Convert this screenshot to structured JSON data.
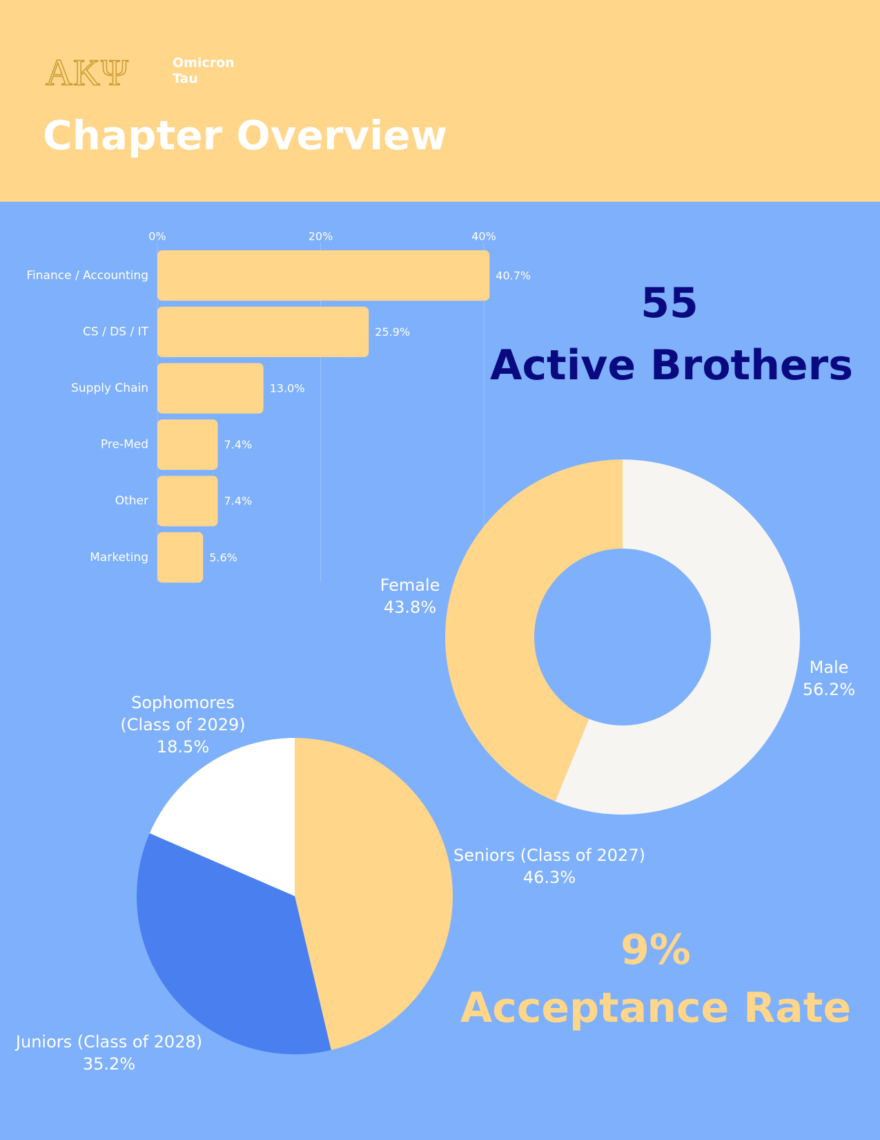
{
  "header": {
    "logo": "AKΨ",
    "chapter_lines": [
      "Omicron",
      "Tau"
    ],
    "title": "Chapter Overview"
  },
  "stats": [
    {
      "value": "55",
      "label": "Active Brothers"
    },
    {
      "value": "9%",
      "label": "Acceptance Rate"
    }
  ],
  "chart_data": [
    {
      "type": "hbar",
      "categories": [
        "Finance / Accounting",
        "CS / DS / IT",
        "Supply Chain",
        "Pre-Med",
        "Other",
        "Marketing"
      ],
      "values": [
        40.7,
        25.9,
        13.0,
        7.4,
        7.4,
        5.6
      ],
      "value_labels": [
        "40.7%",
        "25.9%",
        "13.0%",
        "7.4%",
        "7.4%",
        "5.6%"
      ],
      "color": "#ffd68a",
      "xlim": [
        0,
        40
      ],
      "xticks": [
        {
          "value": 0,
          "label": "0%"
        },
        {
          "value": 20,
          "label": "20%"
        },
        {
          "value": 40,
          "label": "40%"
        }
      ],
      "grid": true
    },
    {
      "type": "donut",
      "categories": [
        "Male",
        "Female"
      ],
      "values": [
        56.2,
        43.8
      ],
      "value_labels": [
        "56.2%",
        "43.8%"
      ],
      "colors": [
        "#f7f5f2",
        "#ffd68a"
      ]
    },
    {
      "type": "pie",
      "categories": [
        "Seniors (Class of 2027)",
        "Juniors (Class of 2028)",
        "Sophomores (Class of 2029)"
      ],
      "values": [
        46.3,
        35.2,
        18.5
      ],
      "value_labels": [
        "46.3%",
        "35.2%",
        "18.5%"
      ],
      "colors": [
        "#ffd68a",
        "#4a7ff0",
        "#ffffff"
      ]
    }
  ]
}
